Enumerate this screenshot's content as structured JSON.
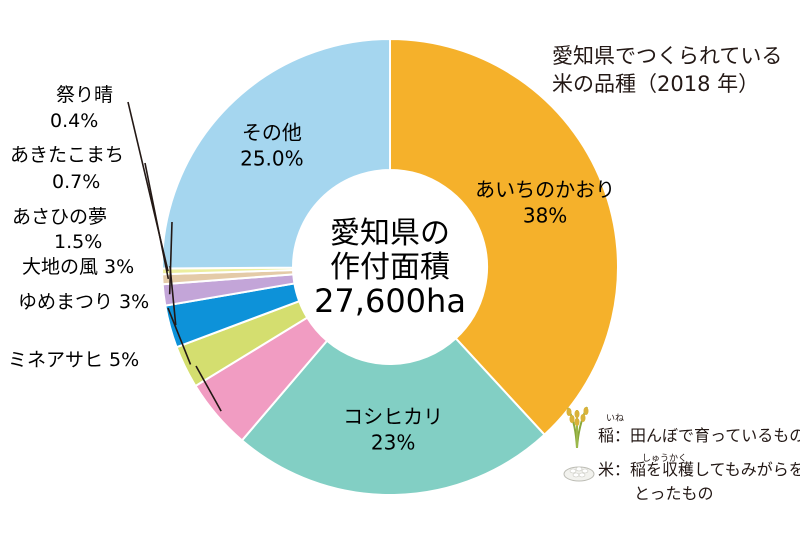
{
  "title_lines": [
    "愛知県でつくられている",
    "米の品種（2018 年）"
  ],
  "center": {
    "line1": "愛知県の",
    "line2": "作付面積",
    "value": "27,600ha"
  },
  "colors": {
    "あいちのかおり": "#f5b12b",
    "コシヒカリ": "#82cfc4",
    "ミネアサヒ": "#f19cc2",
    "ゆめまつり": "#d4de6f",
    "大地の風": "#0d92d9",
    "あさひの夢": "#c3a5d8",
    "あきたこまち": "#e4cba8",
    "祭り晴": "#ecee9e",
    "その他": "#a5d6ef"
  },
  "chart_data": {
    "type": "pie",
    "donut": true,
    "title": "愛知県でつくられている米の品種（2018 年）",
    "categories": [
      "あいちのかおり",
      "コシヒカリ",
      "ミネアサヒ",
      "ゆめまつり",
      "大地の風",
      "あさひの夢",
      "あきたこまち",
      "祭り晴",
      "その他"
    ],
    "values": [
      38,
      23,
      5,
      3,
      3,
      1.5,
      0.7,
      0.4,
      25.0
    ],
    "labels": {
      "あいちのかおり": [
        "あいちのかおり",
        "38%"
      ],
      "コシヒカリ": [
        "コシヒカリ",
        "23%"
      ],
      "ミネアサヒ": [
        "ミネアサヒ 5%"
      ],
      "ゆめまつり": [
        "ゆめまつり 3%"
      ],
      "大地の風": [
        "大地の風 3%"
      ],
      "あさひの夢": [
        "あさひの夢",
        "1.5%"
      ],
      "あきたこまち": [
        "あきたこまち",
        "0.7%"
      ],
      "祭り晴": [
        "祭り晴",
        "0.4%"
      ],
      "その他": [
        "その他",
        "25.0%"
      ]
    }
  },
  "legend": {
    "ine": {
      "text": "稲：田んぼで育っているもの",
      "ruby": "いね"
    },
    "kome": {
      "line1": "米：稲を収穫してもみがらを",
      "line2": "とったもの",
      "ruby": "しゅうかく"
    }
  },
  "icons": [
    "rice-plant-icon",
    "rice-grain-icon"
  ]
}
